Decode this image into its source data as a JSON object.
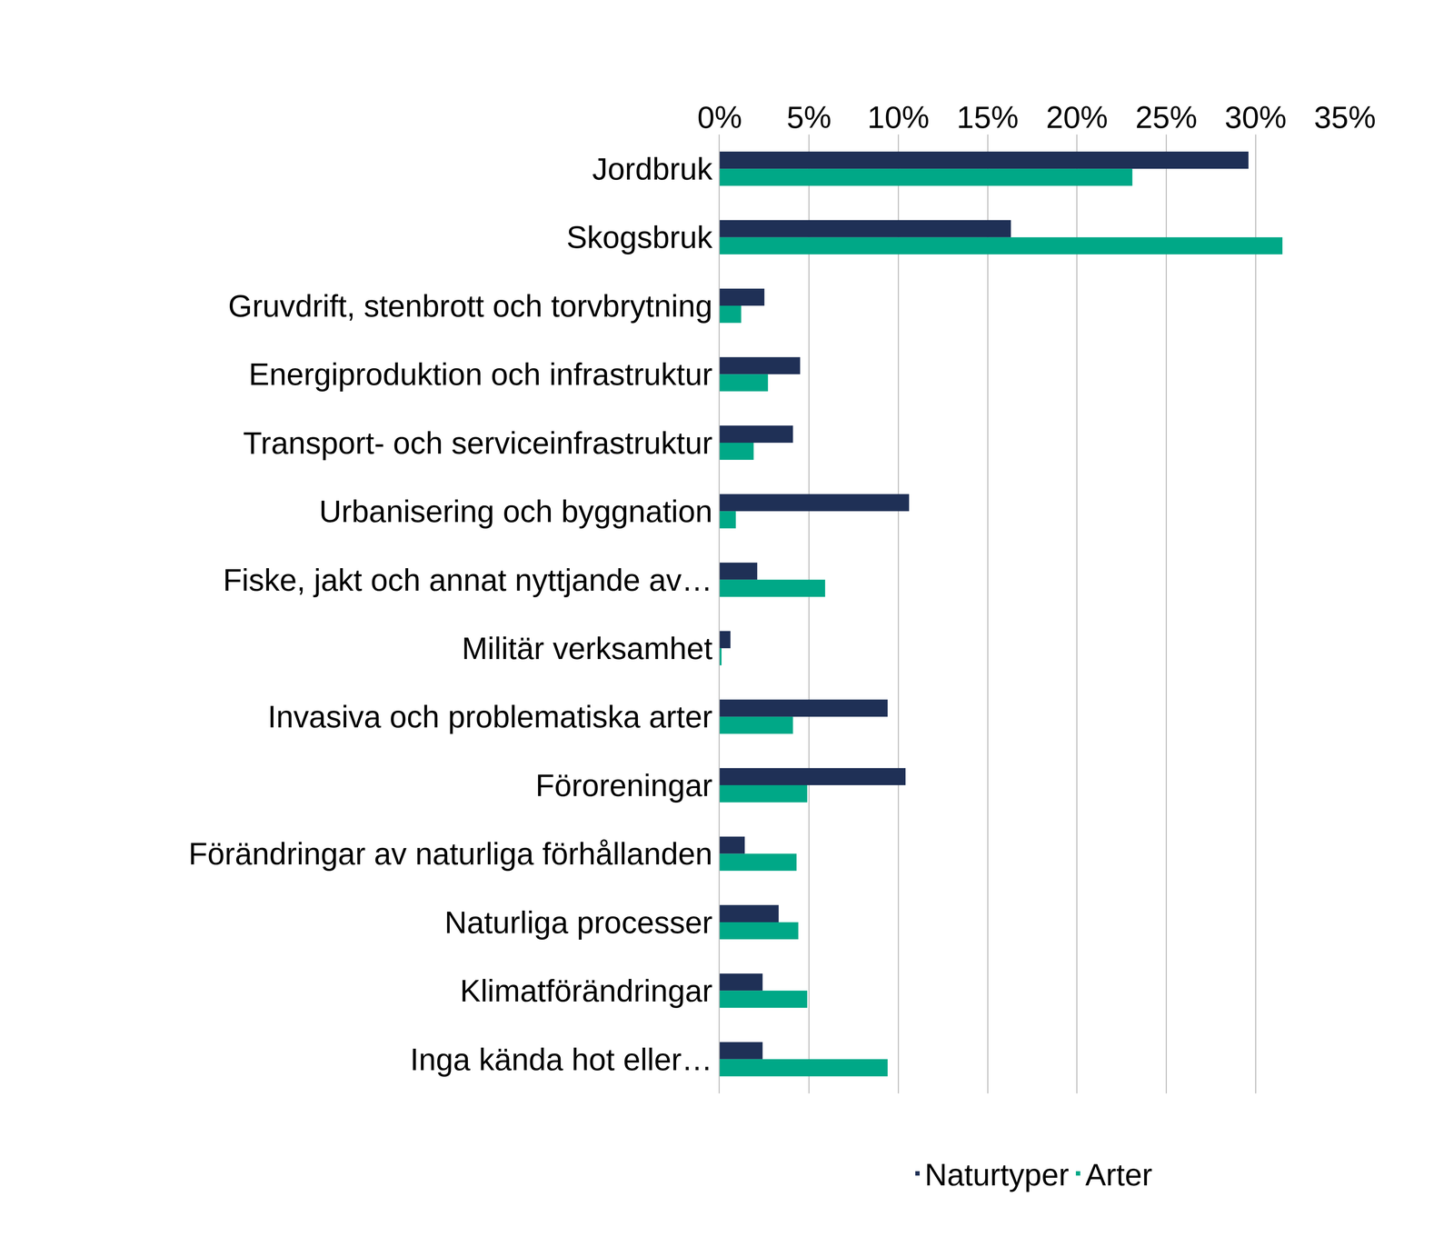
{
  "chart_data": {
    "type": "bar",
    "orientation": "horizontal",
    "categories": [
      "Jordbruk",
      "Skogsbruk",
      "Gruvdrift, stenbrott och torvbrytning",
      "Energiproduktion och infrastruktur",
      "Transport- och serviceinfrastruktur",
      "Urbanisering och byggnation",
      "Fiske, jakt och annat nyttjande av…",
      "Militär verksamhet",
      "Invasiva och problematiska arter",
      "Föroreningar",
      "Förändringar av naturliga förhållanden",
      "Naturliga processer",
      "Klimatförändringar",
      "Inga kända hot eller…"
    ],
    "series": [
      {
        "name": "Naturtyper",
        "color": "#1f3056",
        "values": [
          29.6,
          16.3,
          2.5,
          4.5,
          4.1,
          10.6,
          2.1,
          0.6,
          9.4,
          10.4,
          1.4,
          3.3,
          2.4,
          2.4
        ]
      },
      {
        "name": "Arter",
        "color": "#00a887",
        "values": [
          23.1,
          31.5,
          1.2,
          2.7,
          1.9,
          0.9,
          5.9,
          0.1,
          4.1,
          4.9,
          4.3,
          4.4,
          4.9,
          9.4
        ]
      }
    ],
    "xlim": [
      0,
      35
    ],
    "xticks": [
      {
        "value": 0,
        "label": "0%"
      },
      {
        "value": 5,
        "label": "5%"
      },
      {
        "value": 10,
        "label": "10%"
      },
      {
        "value": 15,
        "label": "15%"
      },
      {
        "value": 20,
        "label": "20%"
      },
      {
        "value": 25,
        "label": "25%"
      },
      {
        "value": 30,
        "label": "30%"
      },
      {
        "value": 35,
        "label": "35%"
      }
    ],
    "grid": true,
    "legend": "bottom"
  }
}
